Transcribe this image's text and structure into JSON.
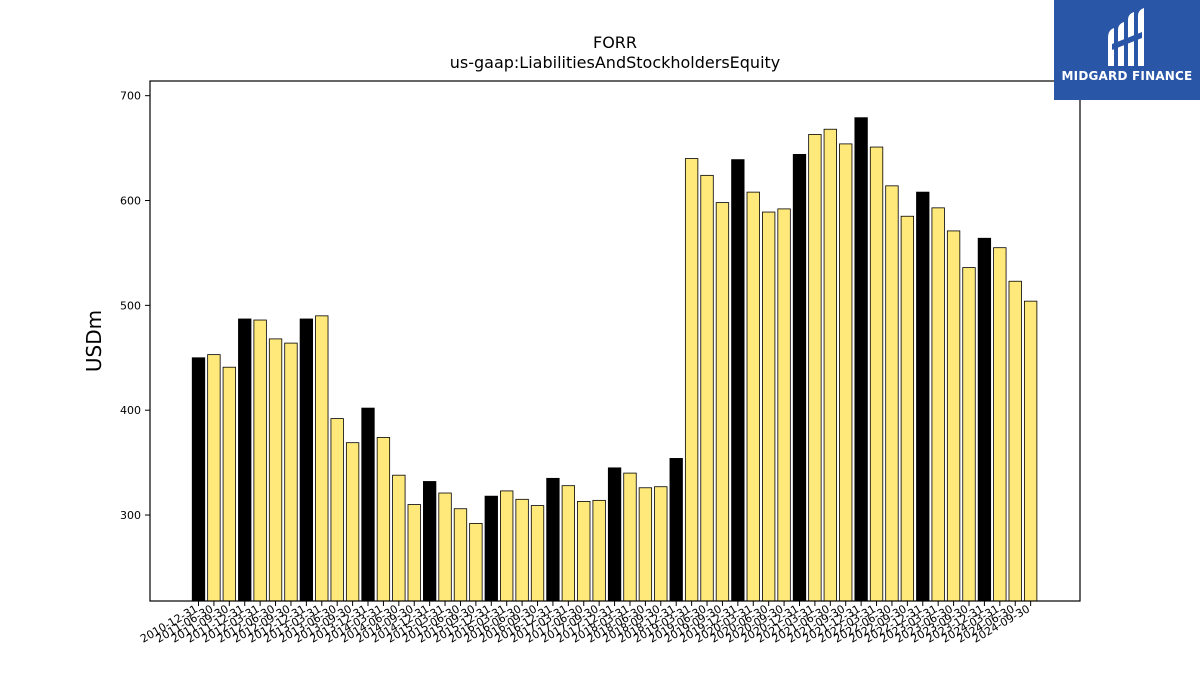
{
  "chart_data": {
    "type": "bar",
    "title": "FORR",
    "subtitle": "us-gaap:LiabilitiesAndStockholdersEquity",
    "ylabel": "USDm",
    "xlabel": "",
    "ylim": [
      218,
      714
    ],
    "yticks": [
      300,
      400,
      500,
      600,
      700
    ],
    "grid": false,
    "colors": {
      "annual": "#000000",
      "quarterly": "#ffe97a",
      "edge": "#000000"
    },
    "categories": [
      "2010-12-31",
      "2011-06-30",
      "2011-09-30",
      "2011-12-31",
      "2012-03-31",
      "2012-06-30",
      "2012-09-30",
      "2012-12-31",
      "2013-03-31",
      "2013-06-30",
      "2013-09-30",
      "2013-12-31",
      "2014-03-31",
      "2014-06-30",
      "2014-09-30",
      "2014-12-31",
      "2015-03-31",
      "2015-06-30",
      "2015-09-30",
      "2015-12-31",
      "2016-03-31",
      "2016-06-30",
      "2016-09-30",
      "2016-12-31",
      "2017-03-31",
      "2017-06-30",
      "2017-09-30",
      "2017-12-31",
      "2018-03-31",
      "2018-06-30",
      "2018-09-30",
      "2018-12-31",
      "2019-03-31",
      "2019-06-30",
      "2019-09-30",
      "2019-12-31",
      "2020-03-31",
      "2020-06-30",
      "2020-09-30",
      "2020-12-31",
      "2021-03-31",
      "2021-06-30",
      "2021-09-30",
      "2021-12-31",
      "2022-03-31",
      "2022-06-30",
      "2022-09-30",
      "2022-12-31",
      "2023-03-31",
      "2023-06-30",
      "2023-09-30",
      "2023-12-31",
      "2024-03-31",
      "2024-06-30",
      "2024-09-30"
    ],
    "values": [
      450,
      453,
      441,
      487,
      486,
      468,
      464,
      487,
      490,
      392,
      369,
      402,
      374,
      338,
      310,
      332,
      321,
      306,
      292,
      318,
      323,
      315,
      309,
      335,
      328,
      313,
      314,
      345,
      340,
      326,
      327,
      354,
      640,
      624,
      598,
      639,
      608,
      589,
      592,
      644,
      663,
      668,
      654,
      679,
      651,
      614,
      585,
      608,
      593,
      571,
      536,
      564,
      555,
      523,
      504
    ],
    "annual_flags": [
      1,
      0,
      0,
      1,
      0,
      0,
      0,
      1,
      0,
      0,
      0,
      1,
      0,
      0,
      0,
      1,
      0,
      0,
      0,
      1,
      0,
      0,
      0,
      1,
      0,
      0,
      0,
      1,
      0,
      0,
      0,
      1,
      0,
      0,
      0,
      1,
      0,
      0,
      0,
      1,
      0,
      0,
      0,
      1,
      0,
      0,
      0,
      1,
      0,
      0,
      0,
      1,
      0,
      0,
      0
    ]
  },
  "logo": {
    "name": "MIDGARD FINANCE",
    "background": "#2a56a8"
  }
}
